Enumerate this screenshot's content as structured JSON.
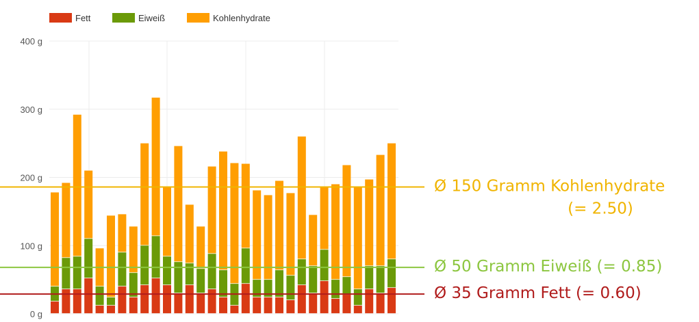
{
  "chart_data": {
    "type": "bar",
    "stacked": true,
    "grid": true,
    "legend_position": "top-left",
    "ylim": [
      0,
      400
    ],
    "yticks": [
      "0 g",
      "100 g",
      "200 g",
      "300 g",
      "400 g"
    ],
    "yticks_values": [
      0,
      100,
      200,
      300,
      400
    ],
    "series": [
      {
        "name": "Fett",
        "color": "#d93a14",
        "values": [
          18,
          36,
          36,
          52,
          12,
          12,
          40,
          24,
          42,
          52,
          42,
          30,
          42,
          30,
          36,
          24,
          12,
          44,
          24,
          24,
          24,
          20,
          42,
          30,
          48,
          22,
          28,
          12,
          36,
          30,
          38
        ]
      },
      {
        "name": "Eiweiß",
        "color": "#6b9a08",
        "values": [
          22,
          46,
          48,
          58,
          28,
          12,
          50,
          36,
          58,
          62,
          42,
          46,
          32,
          36,
          52,
          40,
          32,
          52,
          26,
          26,
          40,
          36,
          38,
          40,
          46,
          28,
          26,
          24,
          34,
          40,
          42
        ]
      },
      {
        "name": "Kohlenhydrate",
        "color": "#ff9e02",
        "values": [
          138,
          110,
          208,
          100,
          56,
          120,
          56,
          68,
          150,
          203,
          102,
          170,
          86,
          62,
          128,
          174,
          177,
          124,
          131,
          124,
          131,
          121,
          180,
          75,
          91,
          140,
          164,
          150,
          127,
          163,
          170
        ]
      }
    ],
    "reference_lines": [
      {
        "value": 186,
        "color": "#f0b400",
        "label_lines": [
          "Ø 150 Gramm Kohlenhydrate",
          "(= 2.50)"
        ]
      },
      {
        "value": 68,
        "color": "#8cc63f",
        "label_lines": [
          "Ø 50 Gramm Eiweiß (= 0.85)"
        ]
      },
      {
        "value": 29,
        "color": "#b01b1b",
        "label_lines": [
          "Ø 35 Gramm Fett (= 0.60)"
        ]
      }
    ]
  }
}
